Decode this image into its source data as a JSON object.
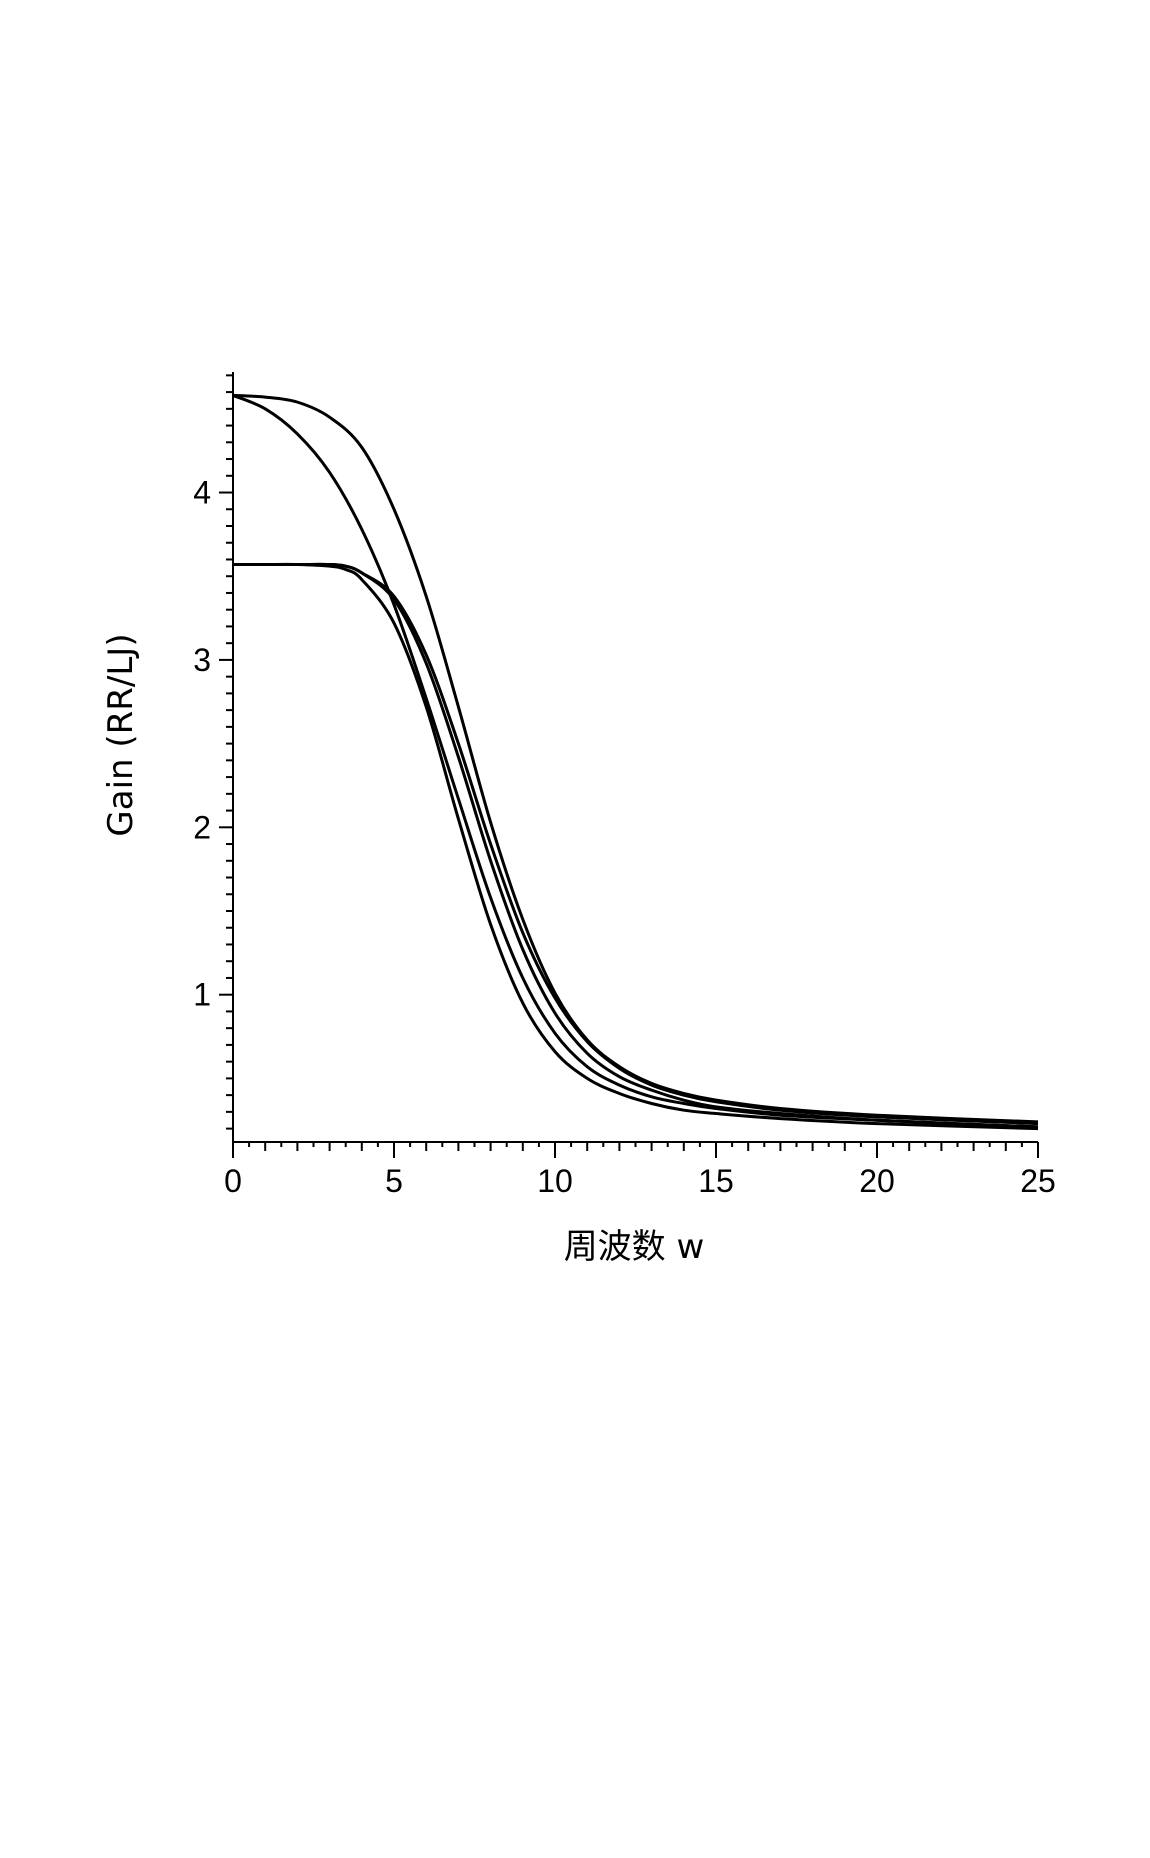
{
  "chart_data": {
    "type": "line",
    "title": "",
    "xlabel": "周波数 w",
    "ylabel": "Gain (RR/LJ)",
    "xlim": [
      0,
      25
    ],
    "ylim": [
      0.12,
      4.72
    ],
    "xticks": [
      0,
      5,
      10,
      15,
      20,
      25
    ],
    "yticks": [
      1,
      2,
      3,
      4
    ],
    "grid": false,
    "legend": "none",
    "series": [
      {
        "x": [
          0,
          1,
          2,
          3,
          4,
          5,
          6,
          7,
          8,
          9,
          10,
          11,
          12,
          13,
          14,
          15,
          17,
          20,
          25
        ],
        "y": [
          4.58,
          4.57,
          4.54,
          4.45,
          4.27,
          3.9,
          3.38,
          2.72,
          2.03,
          1.45,
          1.01,
          0.73,
          0.57,
          0.47,
          0.41,
          0.37,
          0.32,
          0.28,
          0.24
        ]
      },
      {
        "x": [
          0,
          1,
          2,
          3,
          4,
          5,
          6,
          7,
          8,
          9,
          10,
          11,
          12,
          13,
          14,
          15,
          17,
          20,
          25
        ],
        "y": [
          4.58,
          4.5,
          4.35,
          4.12,
          3.78,
          3.33,
          2.77,
          2.17,
          1.58,
          1.1,
          0.77,
          0.57,
          0.46,
          0.39,
          0.35,
          0.32,
          0.28,
          0.25,
          0.21
        ]
      },
      {
        "x": [
          0,
          1,
          2,
          3,
          3.5,
          4,
          5,
          6,
          7,
          8,
          9,
          10,
          11,
          12,
          13,
          14,
          15,
          17,
          20,
          25
        ],
        "y": [
          3.57,
          3.57,
          3.57,
          3.57,
          3.56,
          3.52,
          3.38,
          3.03,
          2.5,
          1.9,
          1.37,
          0.98,
          0.72,
          0.56,
          0.46,
          0.4,
          0.36,
          0.31,
          0.27,
          0.23
        ]
      },
      {
        "x": [
          0,
          1,
          2,
          3,
          3.5,
          4,
          5,
          6,
          7,
          8,
          9,
          10,
          11,
          12,
          13,
          14,
          15,
          17,
          20,
          25
        ],
        "y": [
          3.57,
          3.57,
          3.57,
          3.57,
          3.56,
          3.52,
          3.36,
          2.98,
          2.42,
          1.8,
          1.27,
          0.89,
          0.65,
          0.51,
          0.43,
          0.37,
          0.33,
          0.29,
          0.25,
          0.21
        ]
      },
      {
        "x": [
          0,
          1,
          2,
          3,
          3.5,
          4,
          5,
          6,
          7,
          8,
          9,
          10,
          11,
          12,
          13,
          14,
          15,
          17,
          20,
          25
        ],
        "y": [
          3.57,
          3.57,
          3.57,
          3.56,
          3.54,
          3.48,
          3.22,
          2.72,
          2.05,
          1.42,
          0.95,
          0.66,
          0.5,
          0.41,
          0.35,
          0.31,
          0.29,
          0.26,
          0.23,
          0.2
        ]
      }
    ]
  }
}
